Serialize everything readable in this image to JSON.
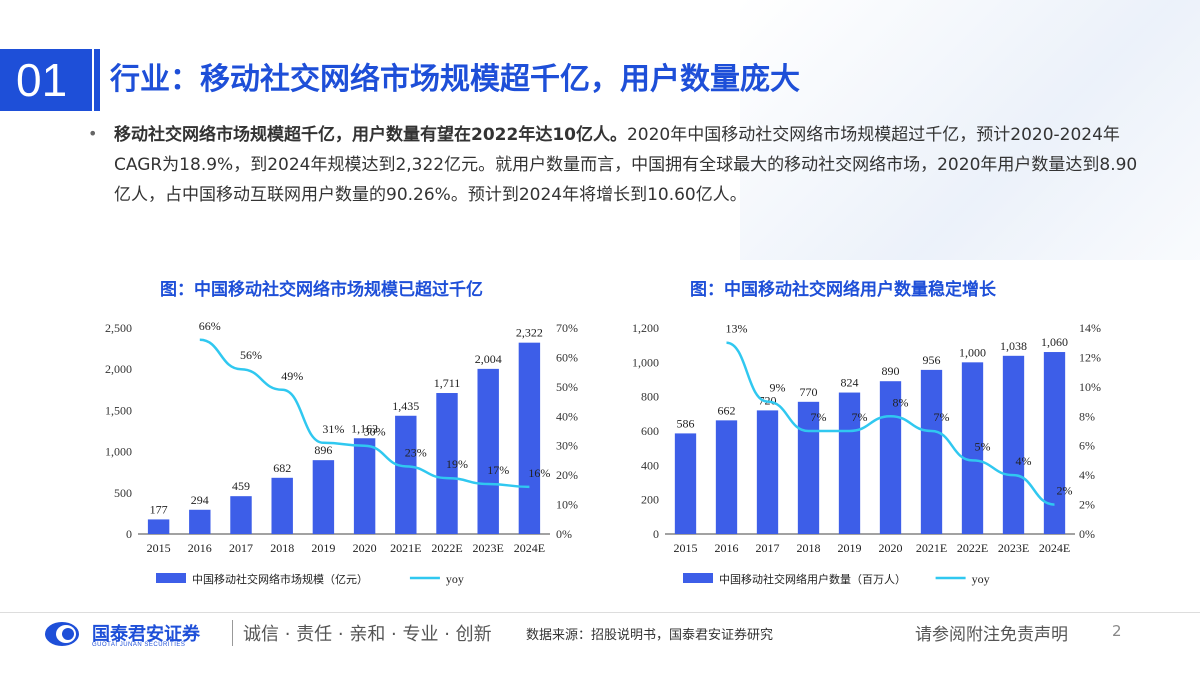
{
  "header": {
    "section_number": "01",
    "title": "行业：移动社交网络市场规模超千亿，用户数量庞大"
  },
  "bullet": {
    "symbol": "•",
    "bold": "移动社交网络市场规模超千亿，用户数量有望在2022年达10亿人。",
    "text": "2020年中国移动社交网络市场规模超过千亿，预计2020-2024年CAGR为18.9%，到2024年规模达到2,322亿元。就用户数量而言，中国拥有全球最大的移动社交网络市场，2020年用户数量达到8.90亿人，占中国移动互联网用户数量的90.26%。预计到2024年将增长到10.60亿人。"
  },
  "colors": {
    "bar": "#3d5ee8",
    "line": "#30c8f0",
    "accent": "#1e4fd8"
  },
  "chart_data": [
    {
      "type": "bar",
      "title": "图：中国移动社交网络市场规模已超过千亿",
      "categories": [
        "2015",
        "2016",
        "2017",
        "2018",
        "2019",
        "2020",
        "2021E",
        "2022E",
        "2023E",
        "2024E"
      ],
      "series": [
        {
          "name": "中国移动社交网络市场规模（亿元）",
          "type": "bar",
          "axis": "left",
          "values": [
            177,
            294,
            459,
            682,
            896,
            1162,
            1435,
            1711,
            2004,
            2322
          ],
          "labels": [
            "177",
            "294",
            "459",
            "682",
            "896",
            "1,162",
            "1,435",
            "1,711",
            "2,004",
            "2,322"
          ]
        },
        {
          "name": "yoy",
          "type": "line",
          "axis": "right",
          "values": [
            null,
            66,
            56,
            49,
            31,
            30,
            23,
            19,
            17,
            16
          ],
          "labels": [
            "",
            "66%",
            "56%",
            "49%",
            "31%",
            "30%",
            "23%",
            "19%",
            "17%",
            "16%"
          ]
        }
      ],
      "left_ticks": [
        "0",
        "500",
        "1,000",
        "1,500",
        "2,000",
        "2,500"
      ],
      "right_ticks": [
        "0%",
        "10%",
        "20%",
        "30%",
        "40%",
        "50%",
        "60%",
        "70%"
      ],
      "ylim_left": [
        0,
        2500
      ],
      "ylim_right": [
        0,
        70
      ]
    },
    {
      "type": "bar",
      "title": "图：中国移动社交网络用户数量稳定增长",
      "categories": [
        "2015",
        "2016",
        "2017",
        "2018",
        "2019",
        "2020",
        "2021E",
        "2022E",
        "2023E",
        "2024E"
      ],
      "series": [
        {
          "name": "中国移动社交网络用户数量（百万人）",
          "type": "bar",
          "axis": "left",
          "values": [
            586,
            662,
            720,
            770,
            824,
            890,
            956,
            1000,
            1038,
            1060
          ],
          "labels": [
            "586",
            "662",
            "720",
            "770",
            "824",
            "890",
            "956",
            "1,000",
            "1,038",
            "1,060"
          ]
        },
        {
          "name": "yoy",
          "type": "line",
          "axis": "right",
          "values": [
            null,
            13,
            9,
            7,
            7,
            8,
            7,
            5,
            4,
            2
          ],
          "labels": [
            "",
            "13%",
            "9%",
            "7%",
            "7%",
            "8%",
            "7%",
            "5%",
            "4%",
            "2%"
          ]
        }
      ],
      "left_ticks": [
        "0",
        "200",
        "400",
        "600",
        "800",
        "1,000",
        "1,200"
      ],
      "right_ticks": [
        "0%",
        "2%",
        "4%",
        "6%",
        "8%",
        "10%",
        "12%",
        "14%"
      ],
      "ylim_left": [
        0,
        1200
      ],
      "ylim_right": [
        0,
        14
      ]
    }
  ],
  "footer": {
    "logo_name": "国泰君安证券",
    "logo_sub": "GUOTAI JUNAN SECURITIES",
    "slogan": "诚信 · 责任 · 亲和 · 专业 · 创新",
    "source": "数据来源：招股说明书，国泰君安证券研究",
    "disclaimer": "请参阅附注免责声明",
    "page": "2"
  }
}
